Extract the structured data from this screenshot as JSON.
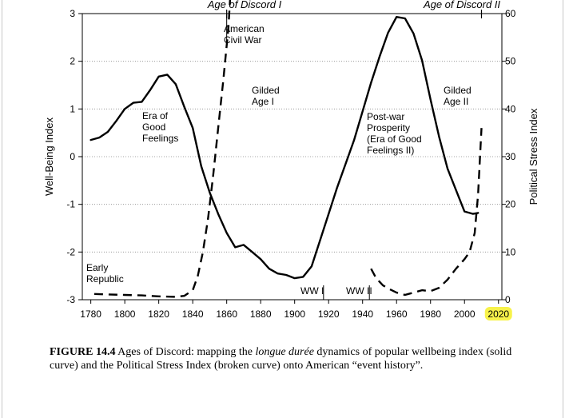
{
  "chart_data": {
    "type": "line",
    "xlabel": "",
    "ylabel_left": "Well-Being Index",
    "ylabel_right": "Political Stress Index",
    "xlim": [
      1775,
      2022
    ],
    "ylim_left": [
      -3,
      3
    ],
    "ylim_right": [
      0,
      60
    ],
    "x_ticks": [
      "1780",
      "1800",
      "1820",
      "1840",
      "1860",
      "1880",
      "1900",
      "1920",
      "1940",
      "1960",
      "1980",
      "2000",
      "2020"
    ],
    "y_left_ticks": [
      "3",
      "2",
      "1",
      "0",
      "-1",
      "-2",
      "-3"
    ],
    "y_right_ticks": [
      "60",
      "50",
      "40",
      "30",
      "20",
      "10",
      "0"
    ],
    "highlighted_tick": "2020",
    "highlight_color": "#f7f24a",
    "grid": "horizontal dotted",
    "series": [
      {
        "style": "solid",
        "axis": "left",
        "x": [
          1780,
          1785,
          1790,
          1795,
          1800,
          1805,
          1810,
          1815,
          1820,
          1825,
          1830,
          1835,
          1840,
          1845,
          1850,
          1855,
          1860,
          1865,
          1870,
          1875,
          1880,
          1885,
          1890,
          1895,
          1900,
          1905,
          1910,
          1915,
          1920,
          1925,
          1930,
          1935,
          1940,
          1945,
          1950,
          1955,
          1960,
          1965,
          1970,
          1975,
          1980,
          1985,
          1990,
          1995,
          2000,
          2005,
          2008
        ],
        "y": [
          0.35,
          0.4,
          0.52,
          0.75,
          1.0,
          1.13,
          1.15,
          1.4,
          1.68,
          1.72,
          1.52,
          1.05,
          0.6,
          -0.2,
          -0.75,
          -1.2,
          -1.6,
          -1.9,
          -1.85,
          -2.0,
          -2.15,
          -2.35,
          -2.45,
          -2.48,
          -2.55,
          -2.52,
          -2.3,
          -1.75,
          -1.2,
          -0.65,
          -0.15,
          0.35,
          0.95,
          1.55,
          2.1,
          2.6,
          2.93,
          2.9,
          2.58,
          2.02,
          1.2,
          0.42,
          -0.25,
          -0.7,
          -1.15,
          -1.2,
          -1.18
        ]
      },
      {
        "style": "dashed",
        "axis": "right",
        "segments": [
          {
            "x": [
              1782,
              1790,
              1800,
              1810,
              1820,
              1830,
              1835,
              1840,
              1843,
              1846,
              1849,
              1852,
              1855,
              1858,
              1861,
              1862
            ],
            "y": [
              1.2,
              1.1,
              1.0,
              0.9,
              0.7,
              0.6,
              0.8,
              2.0,
              5.0,
              10,
              17,
              26,
              36,
              46,
              57,
              63
            ]
          },
          {
            "x": [
              1945,
              1948,
              1952,
              1956,
              1960,
              1965,
              1970,
              1975,
              1980,
              1985,
              1990,
              1995,
              2000,
              2003,
              2006,
              2008,
              2010
            ],
            "y": [
              6.5,
              4.5,
              3.0,
              2.2,
              1.5,
              1.0,
              1.5,
              2.0,
              1.8,
              2.5,
              4.2,
              6.5,
              8.5,
              10,
              14,
              22,
              36
            ]
          }
        ]
      }
    ],
    "annotations": {
      "era_1": "Age of Discord I",
      "era_2": "Age of Discord II",
      "civil_war": [
        "American",
        "Civil War"
      ],
      "gilded_1": [
        "Gilded",
        "Age I"
      ],
      "gilded_2": [
        "Gilded",
        "Age II"
      ],
      "good_feelings": [
        "Era of",
        "Good",
        "Feelings"
      ],
      "early_republic": [
        "Early",
        "Republic"
      ],
      "postwar": [
        "Post-war",
        "Prosperity",
        "(Era of Good",
        "Feelings II)"
      ],
      "ww1": "WW I",
      "ww2": "WW II"
    }
  },
  "caption": {
    "label": "FIGURE 14.4",
    "part1": " Ages of Discord: mapping the ",
    "italic": "longue durée",
    "part2": " dynamics of popular wellbeing index (solid curve) and the Political Stress Index (broken curve) onto American “event history”."
  }
}
